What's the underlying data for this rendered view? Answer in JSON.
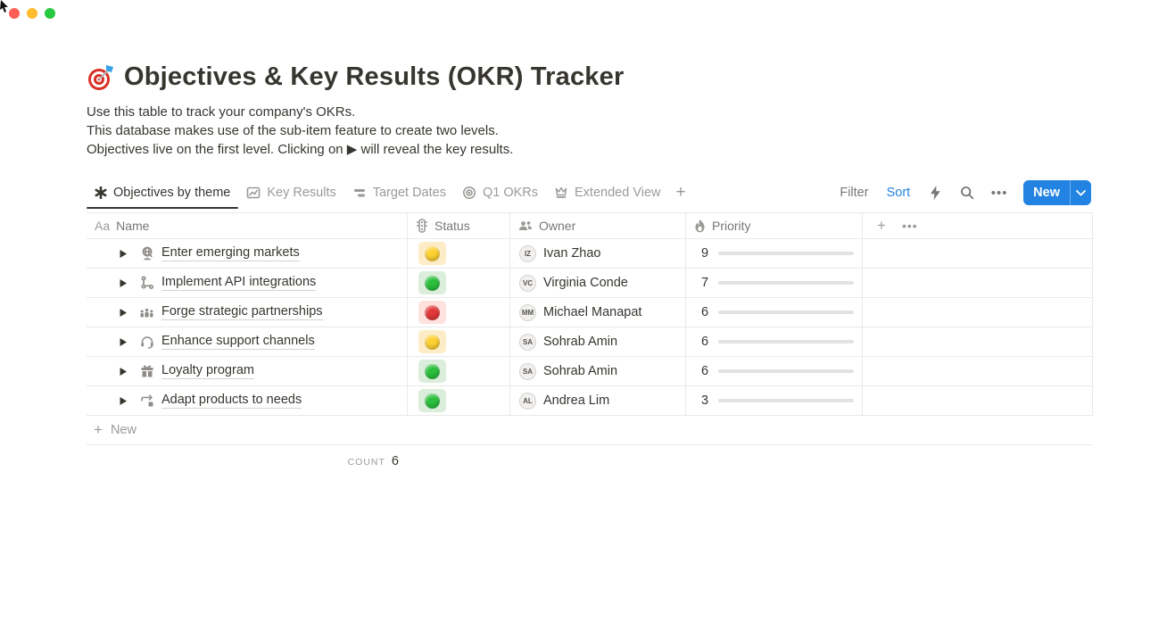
{
  "window": {
    "controls": [
      "close",
      "minimize",
      "zoom"
    ]
  },
  "page": {
    "emoji": "dartboard",
    "title": "Objectives & Key Results (OKR) Tracker",
    "description_lines": [
      "Use this table to track your company's OKRs.",
      "This database makes use of the sub-item feature to create two levels.",
      "Objectives live on the first level. Clicking on ▶ will reveal the key results."
    ]
  },
  "views": {
    "tabs": [
      {
        "label": "Objectives by theme",
        "icon": "asterisk-icon",
        "active": true
      },
      {
        "label": "Key Results",
        "icon": "chart-icon",
        "active": false
      },
      {
        "label": "Target Dates",
        "icon": "timeline-icon",
        "active": false
      },
      {
        "label": "Q1 OKRs",
        "icon": "target-icon",
        "active": false
      },
      {
        "label": "Extended View",
        "icon": "crown-icon",
        "active": false
      }
    ],
    "add_view_label": "+"
  },
  "toolbar": {
    "filter_label": "Filter",
    "sort_label": "Sort",
    "icons": [
      "lightning-icon",
      "search-icon",
      "more-icon"
    ],
    "more_glyph": "•••",
    "new_button": {
      "label": "New",
      "has_dropdown": true
    }
  },
  "table": {
    "columns": [
      {
        "label": "Name",
        "icon": "text-icon",
        "icon_text": "Aa"
      },
      {
        "label": "Status",
        "icon": "traffic-light-icon"
      },
      {
        "label": "Owner",
        "icon": "people-icon"
      },
      {
        "label": "Priority",
        "icon": "flame-icon"
      }
    ],
    "header_plus": "+",
    "header_more": "•••",
    "rows": [
      {
        "name": "Enter emerging markets",
        "icon": "globe-icon",
        "status_color": "yellow",
        "owner": "Ivan Zhao",
        "owner_initials": "IZ",
        "priority": 9
      },
      {
        "name": "Implement API integrations",
        "icon": "nodes-icon",
        "status_color": "green",
        "owner": "Virginia Conde",
        "owner_initials": "VC",
        "priority": 7
      },
      {
        "name": "Forge strategic partnerships",
        "icon": "people-group-icon",
        "status_color": "red",
        "owner": "Michael Manapat",
        "owner_initials": "MM",
        "priority": 6
      },
      {
        "name": "Enhance support channels",
        "icon": "headset-icon",
        "status_color": "yellow",
        "owner": "Sohrab Amin",
        "owner_initials": "SA",
        "priority": 6
      },
      {
        "name": "Loyalty program",
        "icon": "gift-icon",
        "status_color": "green",
        "owner": "Sohrab Amin",
        "owner_initials": "SA",
        "priority": 6
      },
      {
        "name": "Adapt products to needs",
        "icon": "sync-icon",
        "status_color": "green",
        "owner": "Andrea Lim",
        "owner_initials": "AL",
        "priority": 3
      }
    ],
    "priority_max": 10,
    "new_row_label": "New",
    "count_label": "COUNT",
    "count_value": "6"
  },
  "colors": {
    "accent_blue": "#2383e2",
    "priority_bar": "#4c8160",
    "priority_track": "#e3e2e0",
    "status": {
      "yellow": {
        "bg": "#fdecc8",
        "dot": "#fdd131"
      },
      "green": {
        "bg": "#dbeddb",
        "dot": "#2bc03c"
      },
      "red": {
        "bg": "#ffe2dd",
        "dot": "#e23a3a"
      }
    },
    "mac_close": "#ff5f57",
    "mac_minimize": "#febc2e",
    "mac_zoom": "#28c840"
  }
}
